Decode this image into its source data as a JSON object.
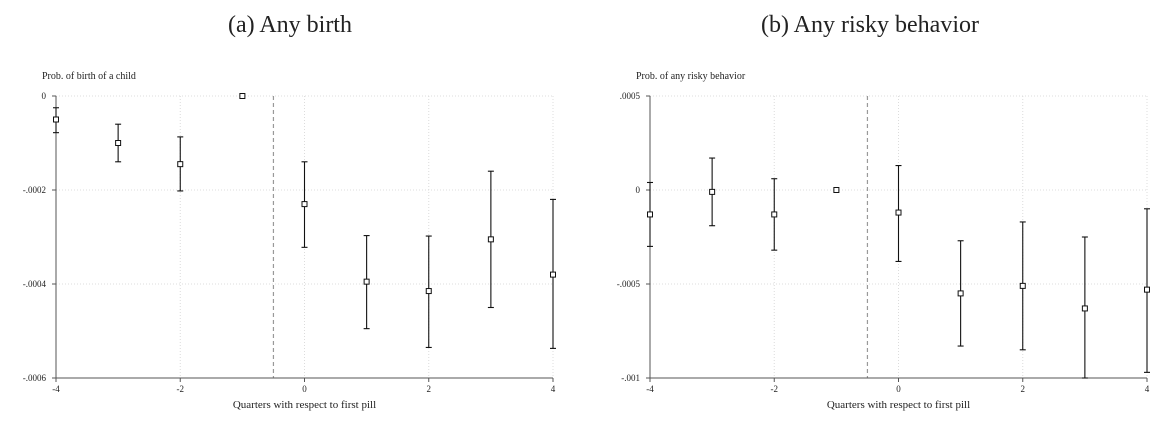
{
  "panels": [
    {
      "label": "(a) Any birth"
    },
    {
      "label": "(b) Any risky behavior"
    }
  ],
  "chart_data": [
    {
      "type": "scatter",
      "title": "(a) Any birth",
      "ylabel": "Prob. of birth of a child",
      "xlabel": "Quarters with respect to first pill",
      "x": [
        -4,
        -3,
        -2,
        -1,
        0,
        1,
        2,
        3,
        4
      ],
      "y": [
        -5e-05,
        -0.0001,
        -0.000145,
        0,
        -0.00023,
        -0.000395,
        -0.000415,
        -0.000305,
        -0.00038
      ],
      "ci_low": [
        -7.8e-05,
        -0.00014,
        -0.000202,
        0,
        -0.000322,
        -0.000495,
        -0.000535,
        -0.00045,
        -0.000537
      ],
      "ci_high": [
        -2.5e-05,
        -6e-05,
        -8.7e-05,
        0,
        -0.00014,
        -0.000297,
        -0.000298,
        -0.00016,
        -0.00022
      ],
      "xlim": [
        -4,
        4
      ],
      "ylim": [
        -0.0006,
        0
      ],
      "xticks": [
        -4,
        -2,
        0,
        2,
        4
      ],
      "xtick_labels": [
        "-4",
        "-2",
        "0",
        "2",
        "4"
      ],
      "yticks": [
        0,
        -0.0002,
        -0.0004,
        -0.0006
      ],
      "ytick_labels": [
        "0",
        "-.0002",
        "-.0004",
        "-.0006"
      ],
      "reference_line_x": -0.5,
      "grid": true
    },
    {
      "type": "scatter",
      "title": "(b) Any risky behavior",
      "ylabel": "Prob. of any risky behavior",
      "xlabel": "Quarters with respect to first pill",
      "x": [
        -4,
        -3,
        -2,
        -1,
        0,
        1,
        2,
        3,
        4
      ],
      "y": [
        -0.00013,
        -1e-05,
        -0.00013,
        0,
        -0.00012,
        -0.00055,
        -0.00051,
        -0.00063,
        -0.00053
      ],
      "ci_low": [
        -0.0003,
        -0.00019,
        -0.00032,
        0,
        -0.00038,
        -0.00083,
        -0.00085,
        -0.001,
        -0.00097
      ],
      "ci_high": [
        4e-05,
        0.00017,
        6e-05,
        0,
        0.00013,
        -0.00027,
        -0.00017,
        -0.00025,
        -0.0001
      ],
      "xlim": [
        -4,
        4
      ],
      "ylim": [
        -0.001,
        0.0005
      ],
      "xticks": [
        -4,
        -2,
        0,
        2,
        4
      ],
      "xtick_labels": [
        "-4",
        "-2",
        "0",
        "2",
        "4"
      ],
      "yticks": [
        0.0005,
        0,
        -0.0005,
        -0.001
      ],
      "ytick_labels": [
        ".0005",
        "0",
        "-.0005",
        "-.001"
      ],
      "reference_line_x": -0.5,
      "grid": true
    }
  ]
}
